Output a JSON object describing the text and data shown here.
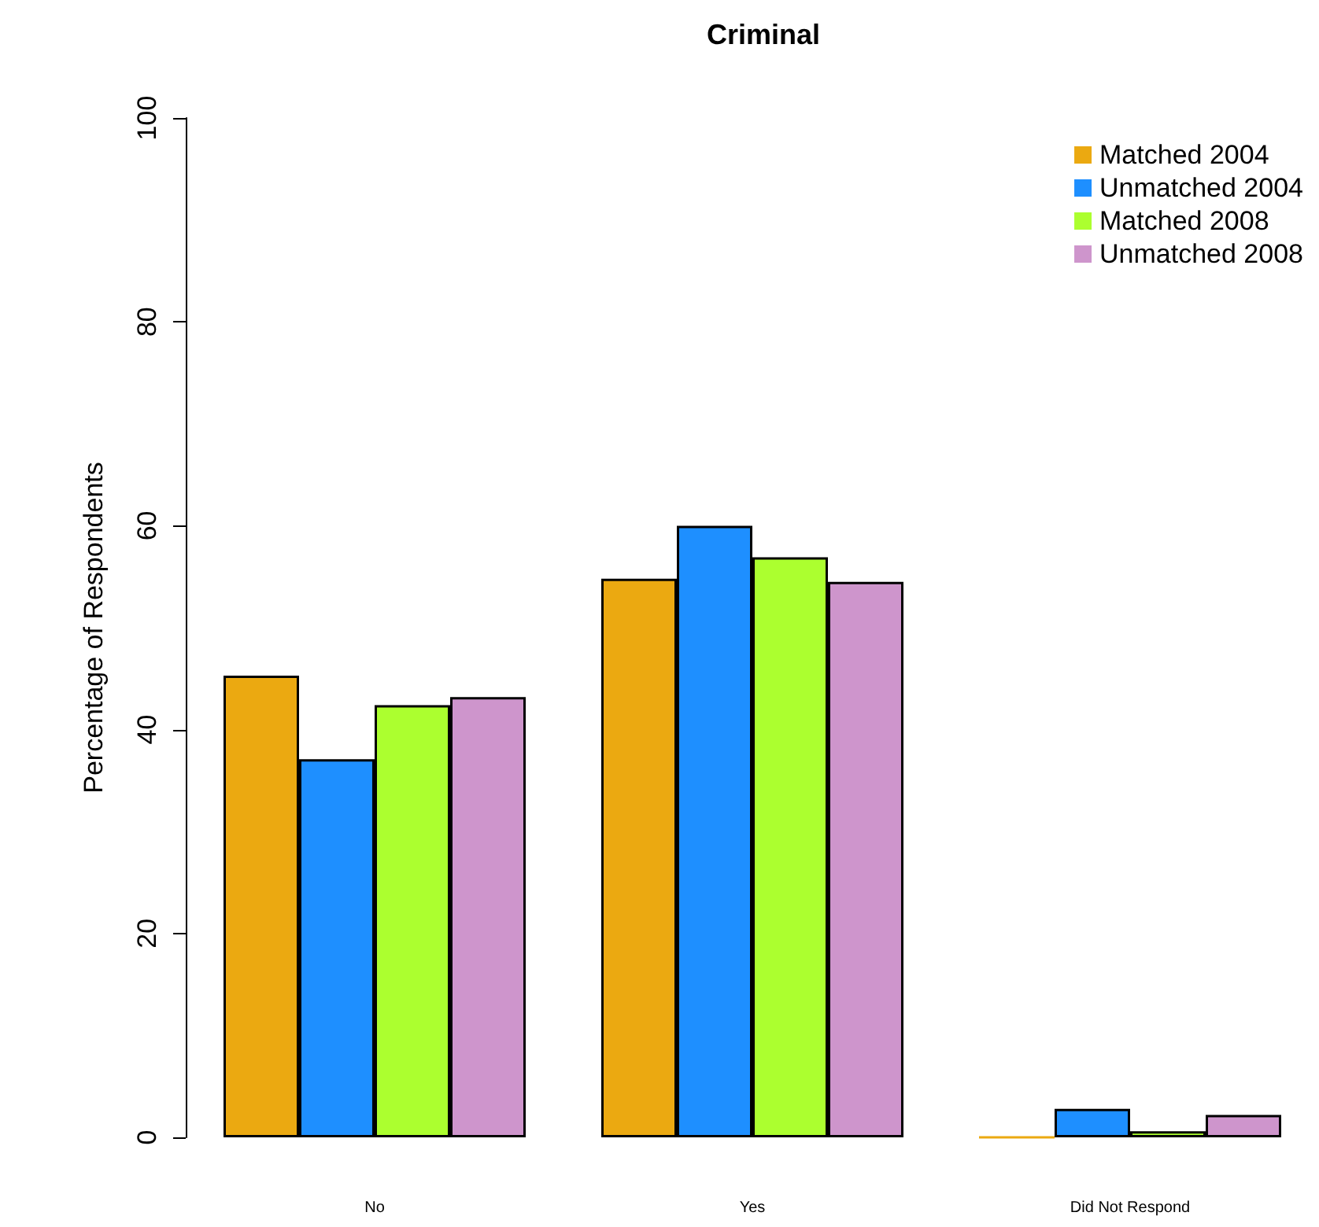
{
  "chart_data": {
    "type": "bar",
    "title": "Criminal",
    "ylabel": "Percentage of Respondents",
    "categories": [
      "No",
      "Yes",
      "Did Not Respond"
    ],
    "series": [
      {
        "name": "Matched 2004",
        "color": "#eba911",
        "values": [
          45.3,
          54.8,
          0
        ]
      },
      {
        "name": "Unmatched 2004",
        "color": "#1e8fff",
        "values": [
          37.1,
          60.0,
          2.8
        ]
      },
      {
        "name": "Matched 2008",
        "color": "#acff2f",
        "values": [
          42.4,
          56.9,
          0.6
        ]
      },
      {
        "name": "Unmatched 2008",
        "color": "#ce95cc",
        "values": [
          43.2,
          54.5,
          2.2
        ]
      }
    ],
    "ylim": [
      0,
      100
    ],
    "yticks": [
      0,
      20,
      40,
      60,
      80,
      100
    ],
    "grid": false,
    "legend": "top right"
  }
}
